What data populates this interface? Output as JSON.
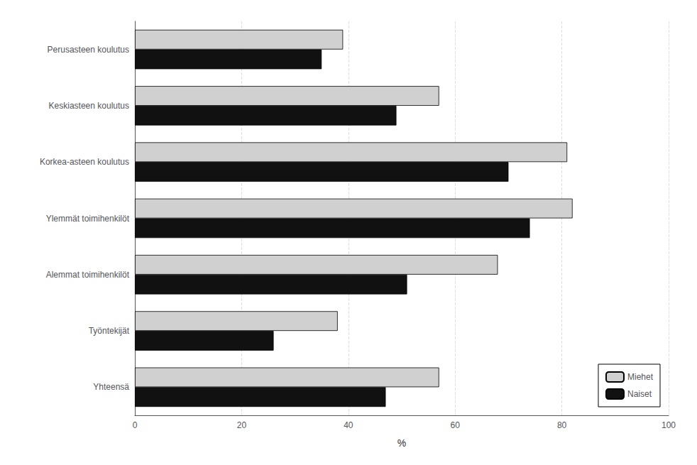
{
  "chart_data": {
    "type": "bar",
    "orientation": "horizontal",
    "categories": [
      "Perusasteen koulutus",
      "Keskiasteen koulutus",
      "Korkea-asteen koulutus",
      "Ylemmät toimihenkilöt",
      "Alemmat toimihenkilöt",
      "Työntekijät",
      "Yhteensä"
    ],
    "series": [
      {
        "name": "Miehet",
        "color": "#d0d0d0",
        "values": [
          39,
          57,
          81,
          82,
          68,
          38,
          57
        ]
      },
      {
        "name": "Naiset",
        "color": "#111111",
        "values": [
          35,
          49,
          70,
          74,
          51,
          26,
          47
        ]
      }
    ],
    "xlabel": "%",
    "xlim": [
      0,
      100
    ],
    "xticks": [
      0,
      20,
      40,
      60,
      80,
      100
    ],
    "grid": true,
    "legend": "lower right"
  }
}
